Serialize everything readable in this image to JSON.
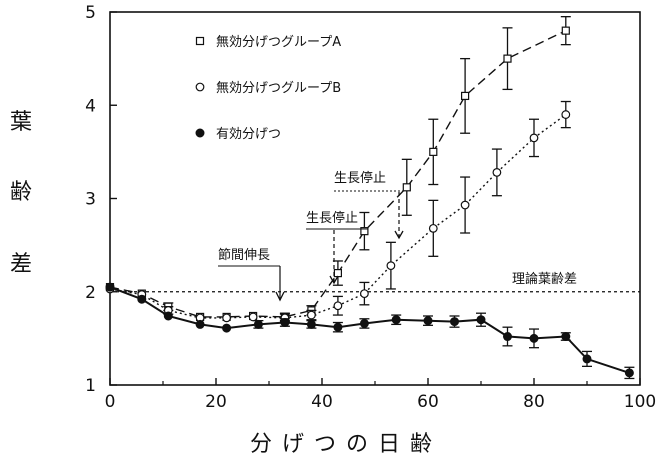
{
  "chart_data": {
    "type": "line",
    "title": "",
    "ylabel_chars": [
      "葉",
      "齢",
      "差"
    ],
    "xlabel": "分げつの日齢",
    "xlim": [
      0,
      100
    ],
    "ylim": [
      1,
      5
    ],
    "x_ticks": [
      "0",
      "20",
      "40",
      "60",
      "80",
      "100"
    ],
    "y_ticks": [
      "1",
      "2",
      "3",
      "4",
      "5"
    ],
    "legend": {
      "position": "top-left",
      "entries": [
        "無効分げつグループA",
        "無効分げつグループB",
        "有効分げつ"
      ]
    },
    "reference_line": {
      "label": "理論葉齢差",
      "y": 2.0
    },
    "annotations": {
      "internode": "節間伸長",
      "stopA": "生長停止",
      "stopB": "生長停止"
    },
    "series": [
      {
        "name": "無効分げつグループA",
        "marker": "square",
        "line": "dashed",
        "points": [
          {
            "x": 0,
            "y": 2.05,
            "err": 0.03
          },
          {
            "x": 6,
            "y": 1.98,
            "err": 0.03
          },
          {
            "x": 11,
            "y": 1.84,
            "err": 0.04
          },
          {
            "x": 17,
            "y": 1.73,
            "err": 0.03
          },
          {
            "x": 22,
            "y": 1.73,
            "err": 0.03
          },
          {
            "x": 27,
            "y": 1.74,
            "err": 0.03
          },
          {
            "x": 33,
            "y": 1.73,
            "err": 0.04
          },
          {
            "x": 38,
            "y": 1.8,
            "err": 0.05
          },
          {
            "x": 43,
            "y": 2.2,
            "err": 0.13
          },
          {
            "x": 48,
            "y": 2.65,
            "err": 0.2
          },
          {
            "x": 56,
            "y": 3.12,
            "err": 0.3
          },
          {
            "x": 61,
            "y": 3.5,
            "err": 0.35
          },
          {
            "x": 67,
            "y": 4.1,
            "err": 0.4
          },
          {
            "x": 75,
            "y": 4.5,
            "err": 0.33
          },
          {
            "x": 86,
            "y": 4.8,
            "err": 0.15
          }
        ]
      },
      {
        "name": "無効分げつグループB",
        "marker": "circle",
        "line": "dotted",
        "points": [
          {
            "x": 0,
            "y": 2.03,
            "err": 0.03
          },
          {
            "x": 6,
            "y": 1.97,
            "err": 0.03
          },
          {
            "x": 11,
            "y": 1.8,
            "err": 0.04
          },
          {
            "x": 17,
            "y": 1.72,
            "err": 0.03
          },
          {
            "x": 22,
            "y": 1.72,
            "err": 0.03
          },
          {
            "x": 27,
            "y": 1.73,
            "err": 0.03
          },
          {
            "x": 33,
            "y": 1.72,
            "err": 0.04
          },
          {
            "x": 38,
            "y": 1.75,
            "err": 0.05
          },
          {
            "x": 43,
            "y": 1.85,
            "err": 0.1
          },
          {
            "x": 48,
            "y": 1.98,
            "err": 0.12
          },
          {
            "x": 53,
            "y": 2.28,
            "err": 0.25
          },
          {
            "x": 61,
            "y": 2.68,
            "err": 0.3
          },
          {
            "x": 67,
            "y": 2.93,
            "err": 0.3
          },
          {
            "x": 73,
            "y": 3.28,
            "err": 0.25
          },
          {
            "x": 80,
            "y": 3.65,
            "err": 0.2
          },
          {
            "x": 86,
            "y": 3.9,
            "err": 0.14
          }
        ]
      },
      {
        "name": "有効分げつ",
        "marker": "filled-circle",
        "line": "solid",
        "points": [
          {
            "x": 0,
            "y": 2.05,
            "err": 0.03
          },
          {
            "x": 6,
            "y": 1.92,
            "err": 0.03
          },
          {
            "x": 11,
            "y": 1.74,
            "err": 0.03
          },
          {
            "x": 17,
            "y": 1.65,
            "err": 0.03
          },
          {
            "x": 22,
            "y": 1.61,
            "err": 0.03
          },
          {
            "x": 28,
            "y": 1.65,
            "err": 0.04
          },
          {
            "x": 33,
            "y": 1.67,
            "err": 0.04
          },
          {
            "x": 38,
            "y": 1.65,
            "err": 0.04
          },
          {
            "x": 43,
            "y": 1.62,
            "err": 0.05
          },
          {
            "x": 48,
            "y": 1.66,
            "err": 0.05
          },
          {
            "x": 54,
            "y": 1.7,
            "err": 0.05
          },
          {
            "x": 60,
            "y": 1.69,
            "err": 0.05
          },
          {
            "x": 65,
            "y": 1.68,
            "err": 0.06
          },
          {
            "x": 70,
            "y": 1.7,
            "err": 0.07
          },
          {
            "x": 75,
            "y": 1.52,
            "err": 0.1
          },
          {
            "x": 80,
            "y": 1.5,
            "err": 0.1
          },
          {
            "x": 86,
            "y": 1.52,
            "err": 0.04
          },
          {
            "x": 90,
            "y": 1.28,
            "err": 0.08
          },
          {
            "x": 98,
            "y": 1.13,
            "err": 0.06
          }
        ]
      }
    ]
  }
}
